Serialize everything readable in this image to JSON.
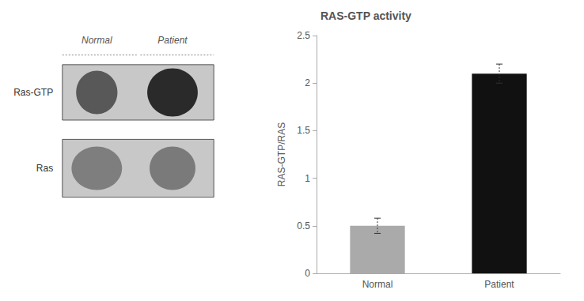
{
  "chart_data": {
    "type": "bar",
    "title": "RAS-GTP activity",
    "categories": [
      "Normal",
      "Patient"
    ],
    "values": [
      0.5,
      2.1
    ],
    "errors": [
      0.08,
      0.1
    ],
    "colors": [
      "#aaaaaa",
      "#111111"
    ],
    "ylabel": "RAS-GTP/RAS",
    "ylim": [
      0,
      2.5
    ],
    "yticks": [
      0,
      0.5,
      1,
      1.5,
      2,
      2.5
    ],
    "grid": false,
    "annotations": [
      "Normal",
      "Patient",
      "Ras-GTP",
      "Ras"
    ]
  }
}
